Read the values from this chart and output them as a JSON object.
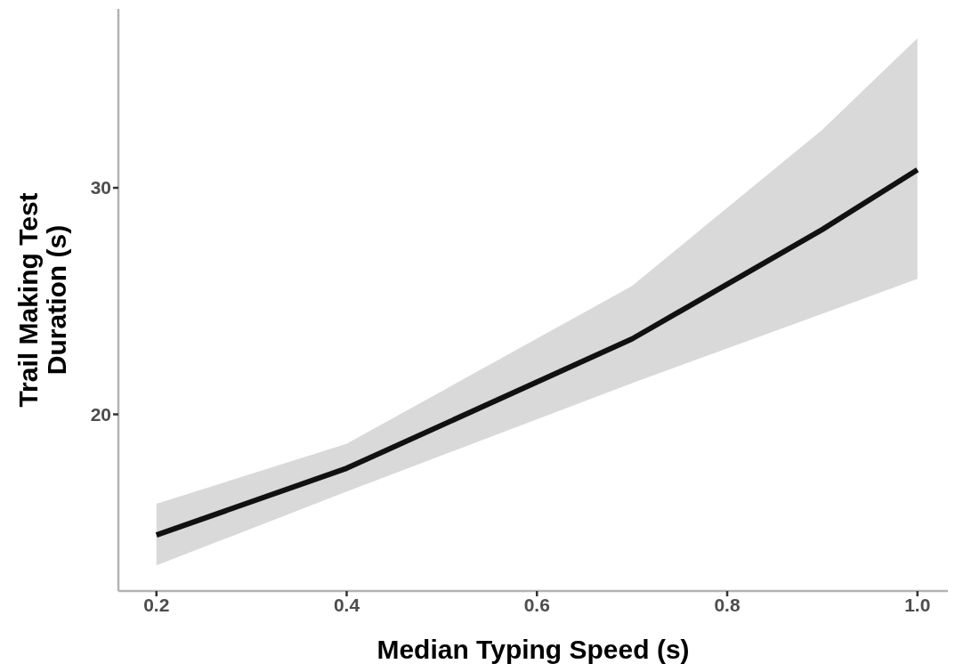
{
  "chart_data": {
    "type": "line",
    "xlabel": "Median Typing Speed (s)",
    "ylabel": "Trail Making Test\nDuration (s)",
    "x": [
      0.2,
      0.4,
      0.7,
      0.9,
      1.0
    ],
    "series": [
      {
        "color": "#111111",
        "values": [
          14.67,
          17.62,
          23.33,
          28.16,
          30.8
        ],
        "lower": [
          13.33,
          16.59,
          21.38,
          24.44,
          25.98
        ],
        "upper": [
          16.05,
          18.7,
          25.67,
          32.57,
          36.6
        ]
      }
    ],
    "xlim": [
      0.16,
      1.032
    ],
    "xticks": [
      0.2,
      0.4,
      0.6,
      0.8,
      {
        "value": 1,
        "label": "1.0"
      }
    ],
    "ylim": [
      12.2,
      37.9
    ],
    "yticks": [
      20,
      30
    ],
    "grid": false,
    "marker": "none",
    "line_style": "solid"
  }
}
